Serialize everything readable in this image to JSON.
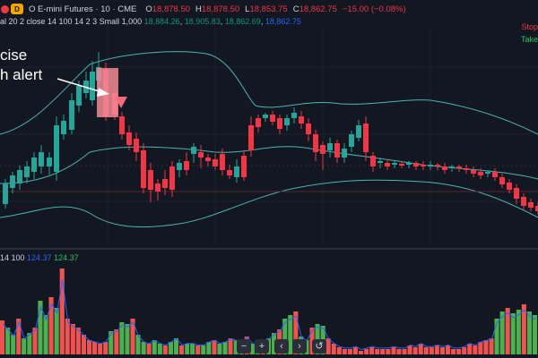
{
  "header": {
    "symbol": "O E-mini Futures · 10 · CME",
    "badge": "D",
    "ohlc": [
      {
        "label": "O",
        "value": "18,878.50"
      },
      {
        "label": "H",
        "value": "18,878.50"
      },
      {
        "label": "L",
        "value": "18,853.75"
      },
      {
        "label": "C",
        "value": "18,862.75"
      }
    ],
    "change": "−15.00 (−0.08%)"
  },
  "indicator": {
    "params": "al 20 2 close 14 100 14 2 3 Small 1,000",
    "values": [
      "18,884.26",
      "18,905.83",
      "18,862.69",
      "18,862.75"
    ]
  },
  "legend": {
    "stop": "Stop",
    "take": "Take"
  },
  "annotation": {
    "line1": "cise",
    "line2": "h alert"
  },
  "volume": {
    "params": "14 100",
    "values": [
      "124.37",
      "124.37"
    ]
  },
  "nav": [
    {
      "name": "zoom-out",
      "glyph": "−"
    },
    {
      "name": "zoom-in",
      "glyph": "+"
    },
    {
      "name": "scroll-left",
      "glyph": "‹"
    },
    {
      "name": "scroll-right",
      "glyph": "›"
    },
    {
      "name": "reset",
      "glyph": "↺"
    }
  ],
  "colors": {
    "up": "#26a69a",
    "down": "#f23645",
    "band": "#4bb4b0",
    "volUp": "#4caf50",
    "volDown": "#ef5350",
    "volLine": "#2962ff"
  }
}
